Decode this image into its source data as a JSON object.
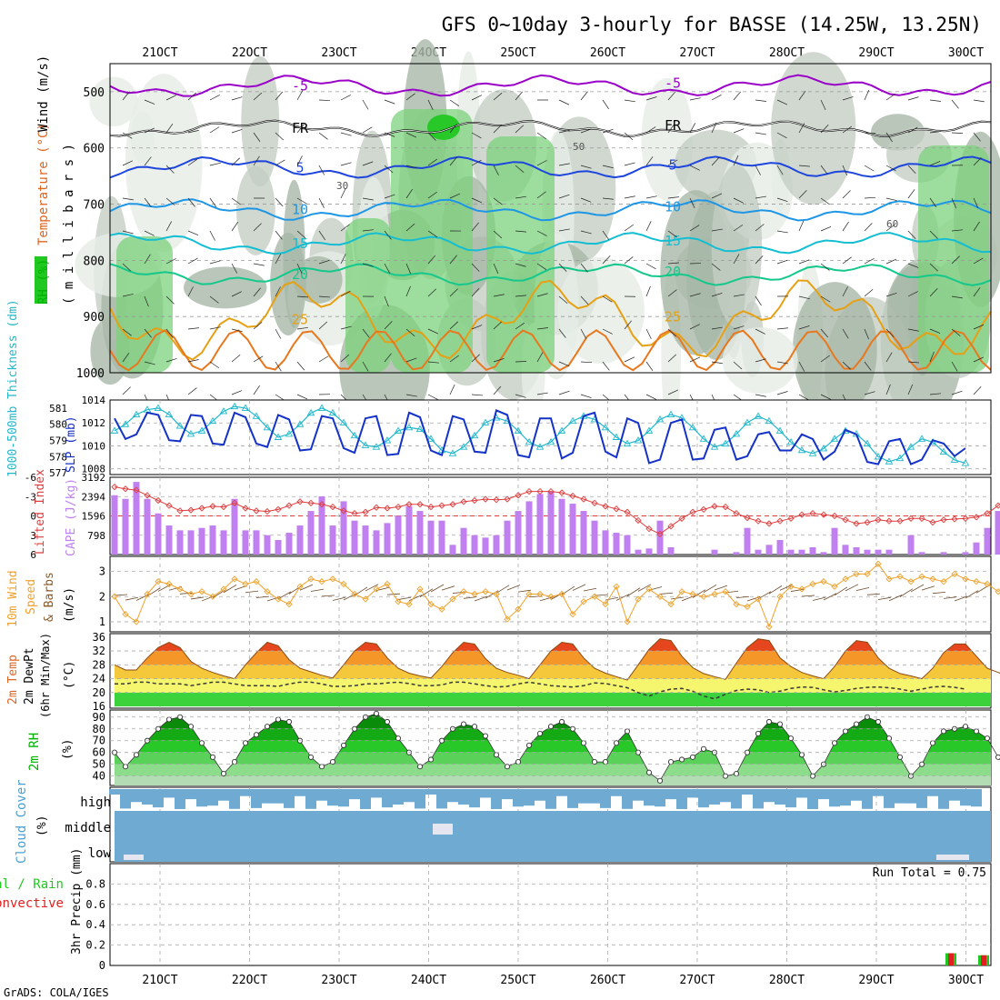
{
  "page": {
    "title": "GFS 0~10day 3-hourly for BASSE (14.25W, 13.25N)",
    "credit": "GrADS: COLA/IGES"
  },
  "chart_data": [
    {
      "type": "heatmap",
      "panel": "upper-air",
      "x_ticks": [
        "21OCT",
        "22OCT",
        "23OCT",
        "24OCT",
        "25OCT",
        "26OCT",
        "27OCT",
        "28OCT",
        "29OCT",
        "30OCT"
      ],
      "ylabel_parts": [
        "RH (%)",
        "Temperature (°C)",
        "Wind (m/s)"
      ],
      "ylabel_unit": "( m i l l i b a r s )",
      "y_ticks": [
        500,
        600,
        700,
        800,
        900,
        1000
      ],
      "ylim": [
        1000,
        450
      ],
      "isotherms": [
        {
          "label": "-5",
          "color": "#9a00c8",
          "level": 490
        },
        {
          "label": "FR",
          "color": "#000000",
          "level": 565
        },
        {
          "label": "5",
          "color": "#1e46dc",
          "level": 635
        },
        {
          "label": "10",
          "color": "#1e96e6",
          "level": 710
        },
        {
          "label": "15",
          "color": "#14bed2",
          "level": 770
        },
        {
          "label": "20",
          "color": "#14c88c",
          "level": 825
        },
        {
          "label": "25",
          "color": "#e6a014",
          "level": 905
        }
      ],
      "rh_labels": [
        "30",
        "50",
        "60"
      ]
    },
    {
      "type": "line",
      "panel": "thickness-slp",
      "ylabel_left": "1000-500mb Thickness (dm)",
      "ylabel_right": "SLP (mb)",
      "y_ticks_thickness": [
        "581",
        "580",
        "579",
        "578",
        "577"
      ],
      "y_ticks_slp": [
        "1014",
        "1012",
        "1010",
        "1008"
      ],
      "series": [
        {
          "name": "1000-500mb Thickness (dm)",
          "color": "#22b8cc",
          "values": [
            579.6,
            580.0,
            580.6,
            580.9,
            581.0,
            580.6,
            579.9,
            579.4,
            579.6,
            580.2,
            580.8,
            581.1,
            581.0,
            580.5,
            579.8,
            579.2,
            579.4,
            580.0,
            580.7,
            581.0,
            580.7,
            580.1,
            579.3,
            578.7,
            578.6,
            579.0,
            579.6,
            579.8,
            579.7,
            579.1,
            578.4,
            578.2,
            578.6,
            579.3,
            580.1,
            580.4,
            580.2,
            579.6,
            578.9,
            578.6,
            578.9,
            579.6,
            580.2,
            580.5,
            580.3,
            579.8,
            579.2,
            578.8,
            579.0,
            579.6,
            580.3,
            580.6,
            580.4,
            579.8,
            579.1,
            578.6,
            578.8,
            579.4,
            580.1,
            580.5,
            580.2,
            579.6,
            578.9,
            578.4,
            578.2,
            578.5,
            579.1,
            579.6,
            579.4,
            578.8,
            578.0,
            577.7,
            577.9,
            578.6,
            579.1,
            578.9,
            578.3,
            577.8,
            577.6
          ]
        },
        {
          "name": "SLP (mb)",
          "color": "#1432c8",
          "values": [
            1012.4,
            1010.6,
            1011.0,
            1012.9,
            1012.7,
            1010.5,
            1010.4,
            1012.7,
            1012.6,
            1010.2,
            1010.1,
            1012.9,
            1012.5,
            1010.2,
            1009.9,
            1012.7,
            1012.3,
            1009.6,
            1009.7,
            1012.6,
            1012.4,
            1009.8,
            1009.4,
            1012.4,
            1012.6,
            1009.2,
            1009.3,
            1012.9,
            1012.5,
            1009.6,
            1009.2,
            1012.6,
            1012.3,
            1009.5,
            1009.4,
            1013.1,
            1012.7,
            1009.2,
            1009.0,
            1012.4,
            1012.4,
            1008.9,
            1009.4,
            1012.6,
            1012.9,
            1009.5,
            1009.0,
            1012.4,
            1012.0,
            1008.5,
            1008.8,
            1012.0,
            1012.3,
            1008.8,
            1008.9,
            1011.4,
            1011.6,
            1008.8,
            1009.1,
            1011.0,
            1011.2,
            1009.6,
            1009.6,
            1011.0,
            1010.6,
            1008.8,
            1009.5,
            1011.4,
            1011.0,
            1008.6,
            1008.4,
            1010.4,
            1010.6,
            1008.4,
            1008.8,
            1010.5,
            1010.2,
            1009.1,
            1009.8
          ]
        }
      ]
    },
    {
      "type": "bar",
      "panel": "cape-lifted-index",
      "ylabel_left": "Lifted Index",
      "ylabel_right": "CAPE (J/kg)",
      "y_ticks_li": [
        "-6",
        "-3",
        "0",
        "3",
        "6"
      ],
      "y_ticks_cape": [
        "3192",
        "2394",
        "1596",
        "798"
      ],
      "series": [
        {
          "name": "CAPE (J/kg)",
          "color": "#c080f0",
          "values": [
            2450,
            2300,
            3000,
            2300,
            1700,
            1200,
            1000,
            1000,
            1100,
            1200,
            1000,
            2300,
            1000,
            1000,
            800,
            600,
            900,
            1200,
            1800,
            2400,
            1200,
            2200,
            1400,
            1200,
            1000,
            1300,
            1600,
            2000,
            1800,
            1400,
            1400,
            400,
            1100,
            800,
            700,
            800,
            1400,
            1800,
            2200,
            2500,
            2600,
            2300,
            2100,
            1800,
            1400,
            1000,
            900,
            800,
            200,
            250,
            1400,
            300,
            0,
            0,
            0,
            200,
            0,
            100,
            1100,
            200,
            400,
            600,
            200,
            200,
            300,
            100,
            1100,
            400,
            300,
            200,
            200,
            200,
            0,
            800,
            100,
            0,
            100,
            0,
            100,
            500,
            1100,
            1800,
            1200,
            600,
            300
          ]
        },
        {
          "name": "Lifted Index",
          "color": "#e03c3c",
          "values": [
            -4.5,
            -4.2,
            -4.0,
            -3.2,
            -2.4,
            -1.6,
            -0.8,
            -0.9,
            -1.2,
            -1.5,
            -1.4,
            -2.0,
            -1.2,
            -0.8,
            -0.7,
            -1.0,
            -1.6,
            -2.2,
            -2.0,
            -1.8,
            -1.4,
            -0.8,
            -0.4,
            -0.6,
            -1.3,
            -1.2,
            -1.4,
            -1.8,
            -1.8,
            -1.4,
            -1.6,
            -1.8,
            -2.2,
            -2.4,
            -2.6,
            -2.5,
            -2.6,
            -3.2,
            -3.8,
            -3.8,
            -3.8,
            -3.6,
            -3.1,
            -2.6,
            -2.0,
            -1.5,
            -1.1,
            -0.6,
            0.7,
            2.0,
            2.8,
            1.6,
            0.4,
            -0.6,
            -1.0,
            -1.5,
            -1.4,
            -0.4,
            0.3,
            0.8,
            1.2,
            0.8,
            0.4,
            -0.2,
            -0.4,
            -0.2,
            0.0,
            0.6,
            1.2,
            1.0,
            0.6,
            0.8,
            0.8,
            0.4,
            0.4,
            1.0,
            0.6,
            0.5,
            0.4,
            0.2,
            -0.4,
            -1.6,
            -2.8,
            -4.2,
            -2.4,
            -0.8,
            0.0
          ]
        }
      ]
    },
    {
      "type": "line",
      "panel": "10m-wind",
      "ylabel": [
        "10m Wind",
        "Speed",
        "& Barbs",
        "(m/s)"
      ],
      "y_ticks": [
        "1",
        "2",
        "3"
      ],
      "series": [
        {
          "name": "10m Wind Speed",
          "color": "#f0a028",
          "values": [
            2.0,
            1.3,
            1.0,
            2.1,
            2.6,
            2.5,
            2.3,
            2.1,
            2.2,
            2.0,
            2.3,
            2.7,
            2.5,
            2.6,
            2.2,
            1.9,
            1.7,
            2.4,
            2.7,
            2.6,
            2.7,
            2.5,
            2.1,
            1.9,
            2.3,
            2.5,
            1.8,
            1.7,
            2.3,
            1.7,
            1.5,
            1.9,
            2.2,
            2.1,
            2.2,
            2.1,
            1.1,
            1.5,
            2.1,
            2.1,
            2.0,
            2.1,
            1.3,
            1.8,
            2.0,
            1.7,
            2.4,
            1.0,
            1.9,
            2.3,
            2.0,
            1.7,
            2.2,
            2.1,
            2.0,
            2.1,
            2.2,
            1.7,
            1.6,
            1.9,
            0.8,
            2.0,
            2.4,
            2.3,
            2.5,
            2.6,
            2.4,
            2.7,
            2.9,
            2.9,
            3.3,
            2.7,
            2.8,
            2.6,
            2.8,
            2.7,
            2.6,
            2.9,
            2.7,
            2.6,
            2.5,
            2.2,
            2.5,
            2.2,
            2.4,
            2.3,
            2.1,
            2.3,
            2.0
          ]
        }
      ]
    },
    {
      "type": "area",
      "panel": "2m-temp",
      "ylabel": [
        "2m Temp",
        "2m DewPt",
        "(6hr Min/Max)",
        "(°C)"
      ],
      "y_ticks": [
        "16",
        "20",
        "24",
        "28",
        "32",
        "36"
      ],
      "series": [
        {
          "name": "2m Temp",
          "color": "#8b4a14",
          "values": [
            28.0,
            26.5,
            26.5,
            30.0,
            33.0,
            34.5,
            33.0,
            29.0,
            27.0,
            25.8,
            24.8,
            24.0,
            28.0,
            31.5,
            34.5,
            33.5,
            29.5,
            27.0,
            26.0,
            25.0,
            24.2,
            28.0,
            32.0,
            34.5,
            34.0,
            30.0,
            27.0,
            25.6,
            24.8,
            24.2,
            27.5,
            31.5,
            34.5,
            34.0,
            29.8,
            27.0,
            25.8,
            25.0,
            24.0,
            28.0,
            32.0,
            34.5,
            34.0,
            30.0,
            27.0,
            25.6,
            24.6,
            23.6,
            28.0,
            32.5,
            35.5,
            35.0,
            30.5,
            27.2,
            25.5,
            24.6,
            23.8,
            28.5,
            33.0,
            35.5,
            35.0,
            30.0,
            27.5,
            25.8,
            24.8,
            24.0,
            27.5,
            32.0,
            35.0,
            34.5,
            30.0,
            27.0,
            25.5,
            24.8,
            24.0,
            27.0,
            31.5,
            34.0,
            34.0,
            30.5,
            27.0,
            25.8,
            24.6,
            23.8
          ]
        },
        {
          "name": "2m DewPt",
          "color": "#3a3a3a",
          "values": [
            22.5,
            22.5,
            23.0,
            23.0,
            22.5,
            22.5,
            22.5,
            22.0,
            22.5,
            23.0,
            23.0,
            22.5,
            22.0,
            22.0,
            22.0,
            21.8,
            22.5,
            23.0,
            23.0,
            22.5,
            21.8,
            21.8,
            22.0,
            22.5,
            22.5,
            22.8,
            23.0,
            22.6,
            22.0,
            22.0,
            22.2,
            23.0,
            23.0,
            22.5,
            22.0,
            21.6,
            21.8,
            22.5,
            23.0,
            22.5,
            22.0,
            21.8,
            21.6,
            22.0,
            22.8,
            22.6,
            22.0,
            21.4,
            20.0,
            19.0,
            20.2,
            21.0,
            21.2,
            20.4,
            19.0,
            18.2,
            19.5,
            20.6,
            21.0,
            20.8,
            20.0,
            20.4,
            21.2,
            21.6,
            21.5,
            20.8,
            20.2,
            20.6,
            21.2,
            21.5,
            21.6,
            21.4,
            21.0,
            20.4,
            21.0,
            21.6,
            21.8,
            21.5,
            21.0
          ]
        }
      ]
    },
    {
      "type": "area",
      "panel": "2m-rh",
      "ylabel": "2m RH",
      "ylabel_unit": "(%)",
      "y_ticks": [
        "40",
        "50",
        "60",
        "70",
        "80",
        "90"
      ],
      "series": [
        {
          "name": "2m RH",
          "color": "#008c00",
          "values": [
            60,
            48,
            58,
            70,
            80,
            88,
            90,
            82,
            68,
            56,
            42,
            52,
            68,
            75,
            82,
            88,
            86,
            70,
            56,
            48,
            52,
            66,
            80,
            90,
            93,
            86,
            72,
            60,
            48,
            54,
            70,
            80,
            84,
            82,
            74,
            58,
            48,
            52,
            66,
            76,
            82,
            86,
            80,
            68,
            52,
            52,
            68,
            78,
            60,
            43,
            36,
            52,
            54,
            56,
            63,
            60,
            40,
            42,
            60,
            76,
            86,
            84,
            72,
            58,
            40,
            50,
            68,
            78,
            84,
            90,
            86,
            72,
            56,
            40,
            50,
            68,
            78,
            80,
            82,
            78,
            72,
            56,
            44,
            52,
            68,
            80,
            86
          ]
        }
      ]
    },
    {
      "type": "area",
      "panel": "cloud-cover",
      "ylabel": "Cloud Cover",
      "ylabel_unit": "(%)",
      "level_labels": [
        "high",
        "middle",
        "low"
      ]
    },
    {
      "type": "bar",
      "panel": "precip",
      "ylabel_left": "Total / Rain",
      "ylabel_left2": "Convective",
      "ylabel": "3hr Precip (mm)",
      "y_ticks": [
        "0",
        "0.2",
        "0.4",
        "0.6",
        "0.8"
      ],
      "ylim": [
        0,
        1.0
      ],
      "run_total_text": "Run Total = 0.75",
      "series": [
        {
          "name": "Total / Rain",
          "color": "#22c822",
          "values": [
            0.12,
            0.1
          ]
        },
        {
          "name": "Convective",
          "color": "#e02020",
          "values": [
            0.12,
            0.1
          ]
        }
      ]
    }
  ]
}
